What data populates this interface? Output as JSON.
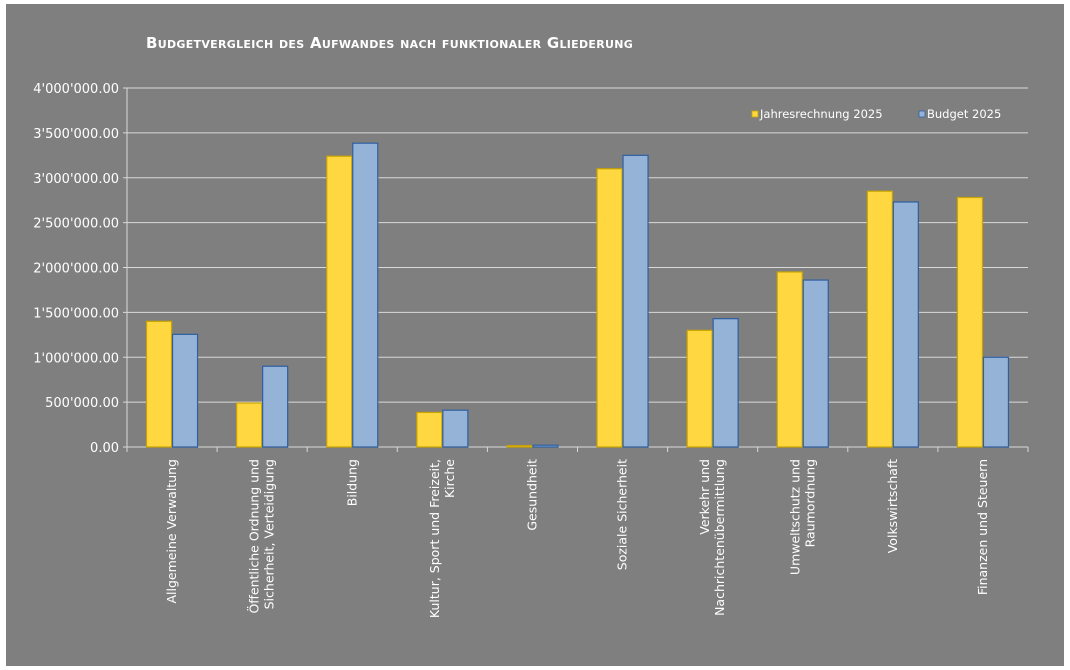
{
  "chart_data": {
    "type": "bar",
    "title": "Budgetvergleich des Aufwandes nach funktionaler Gliederung",
    "xlabel": "",
    "ylabel": "",
    "ylim": [
      0,
      4000000
    ],
    "yticks": [
      0,
      500000,
      1000000,
      1500000,
      2000000,
      2500000,
      3000000,
      3500000,
      4000000
    ],
    "ytick_labels": [
      "0.00",
      "500'000.00",
      "1'000'000.00",
      "1'500'000.00",
      "2'000'000.00",
      "2'500'000.00",
      "3'000'000.00",
      "3'500'000.00",
      "4'000'000.00"
    ],
    "grid": true,
    "legend_position": "top-right",
    "categories": [
      [
        "Allgemeine Verwaltung"
      ],
      [
        "Öffentliche Ordnung und",
        "Sicherheit, Verteidigung"
      ],
      [
        "Bildung"
      ],
      [
        "Kultur, Sport und Freizeit,",
        "Kirche"
      ],
      [
        "Gesundheit"
      ],
      [
        "Soziale Sicherheit"
      ],
      [
        "Verkehr und",
        "Nachrichtenübermittlung"
      ],
      [
        "Umweltschutz und",
        "Raumordnung"
      ],
      [
        "Volkswirtschaft"
      ],
      [
        "Finanzen und Steuern"
      ]
    ],
    "series": [
      {
        "name": "Jahresrechnung 2025",
        "color": "#ffd740",
        "stroke": "#c9a400",
        "values": [
          1400000,
          490000,
          3240000,
          385000,
          15000,
          3100000,
          1300000,
          1950000,
          2850000,
          2780000
        ]
      },
      {
        "name": "Budget 2025",
        "color": "#95b3d7",
        "stroke": "#2e5fa0",
        "values": [
          1255000,
          900000,
          3385000,
          410000,
          20000,
          3250000,
          1430000,
          1860000,
          2730000,
          1000000
        ]
      }
    ]
  }
}
